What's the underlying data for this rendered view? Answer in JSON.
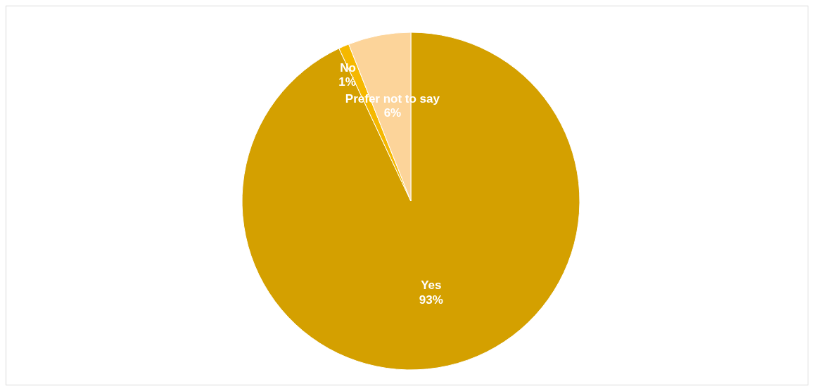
{
  "chart_data": {
    "type": "pie",
    "categories": [
      "Yes",
      "No",
      "Prefer not to say"
    ],
    "values": [
      93,
      1,
      6
    ],
    "colors": [
      "#d4a000",
      "#f5b800",
      "#fcd49a"
    ],
    "value_labels": [
      "93%",
      "1%",
      "6%"
    ],
    "legend": false
  }
}
